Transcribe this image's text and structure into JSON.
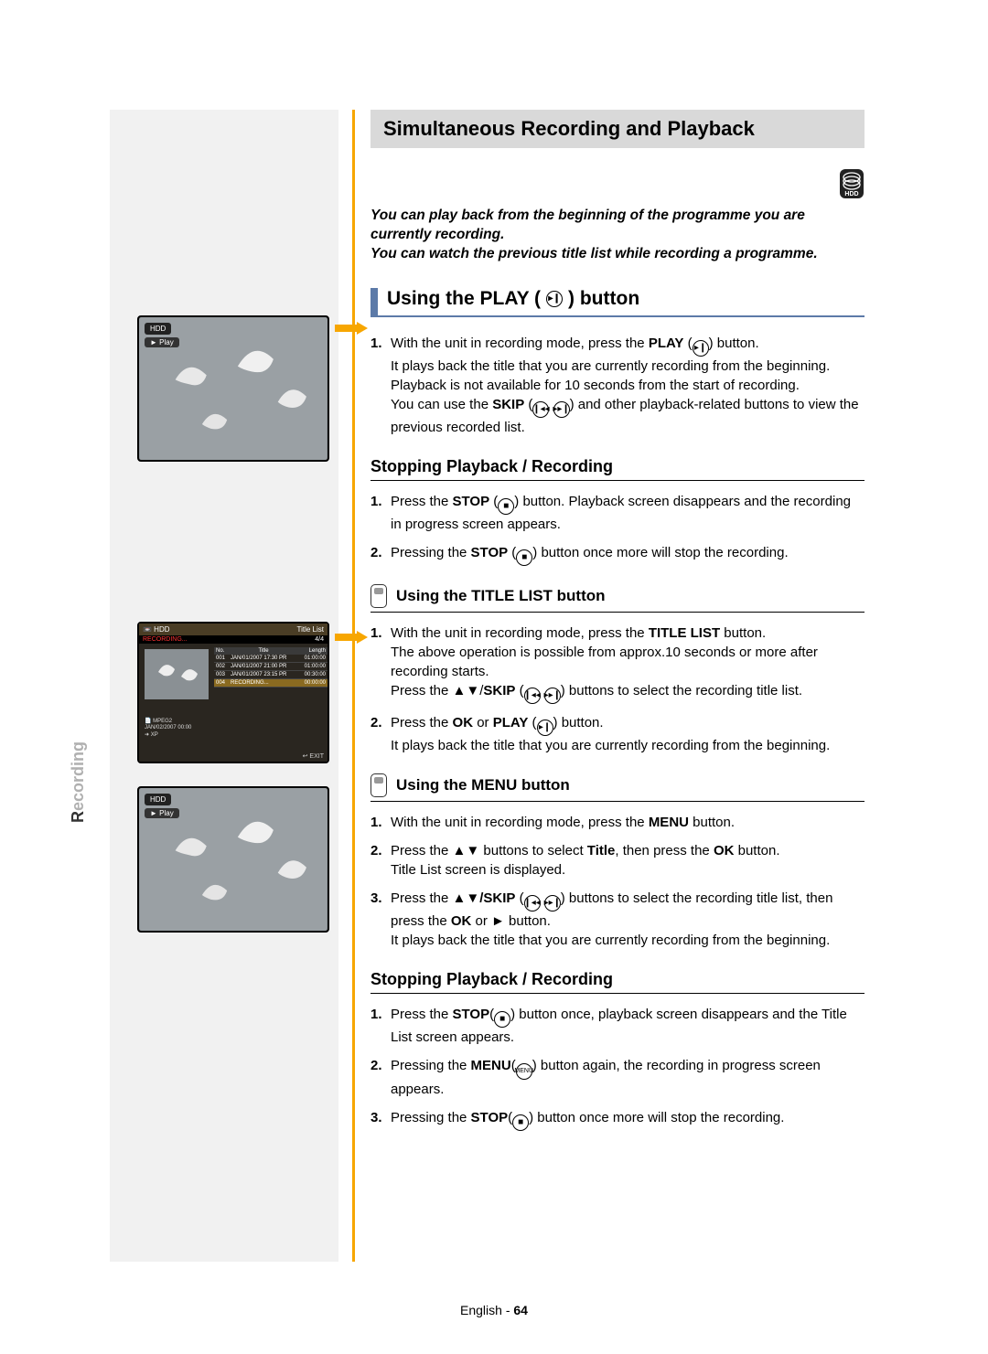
{
  "side_label_accent": "R",
  "side_label_rest": "ecording",
  "banner_title": "Simultaneous Recording and Playback",
  "intro_line1": "You can play back from the beginning of the programme you are currently recording.",
  "intro_line2": "You can watch the previous title list while recording a programme.",
  "heading_play": "Using the PLAY (",
  "heading_play_after": ") button",
  "heading_stop1": "Stopping Playback / Recording",
  "heading_titlelist": "Using the TITLE LIST button",
  "heading_menu": "Using the MENU button",
  "heading_stop2": "Stopping Playback / Recording",
  "play_steps": [
    "With the unit in recording mode, press the <b>PLAY</b> (<span class='circ'>▸❙</span>) button.<br>It plays back the title that you are currently recording from the beginning.<br>Playback is not available for 10 seconds from the start of recording.<br>You can use the <b>SKIP</b> (<span class='circ'>❙◂◂</span> <span class='circ'>▸▸❙</span>) and other playback-related buttons to view the previous recorded list."
  ],
  "stop1_steps": [
    "Press the <b>STOP</b> (<span class='circ'>■</span>) button. Playback screen disappears and the recording in progress screen appears.",
    "Pressing the <b>STOP</b> (<span class='circ'>■</span>) button once more will stop the recording."
  ],
  "titlelist_steps": [
    "With the unit in recording mode, press the <b>TITLE LIST</b> button.<br>The above operation is possible from approx.10 seconds or more after recording starts.<br>Press the ▲▼/<b>SKIP</b> (<span class='circ'>❙◂◂</span> <span class='circ'>▸▸❙</span>) buttons to select the recording title list.",
    "Press the <b>OK</b> or <b>PLAY</b> (<span class='circ'>▸❙</span>) button.<br>It plays back the title that you are currently recording from the beginning."
  ],
  "menu_steps": [
    "With the unit in recording mode, press the <b>MENU</b> button.",
    "Press the ▲▼ buttons to select <b>Title</b>, then press the  <b>OK</b> button.<br>Title List screen is displayed.",
    "Press the ▲▼<b>/SKIP</b> (<span class='circ'>❙◂◂</span> <span class='circ'>▸▸❙</span>) buttons to select the recording title list, then press the <b>OK</b> or ► button.<br>It plays back the title that you are currently recording from the beginning."
  ],
  "stop2_steps": [
    "Press the <b>STOP</b>(<span class='circ'>■</span>) button once, playback screen disappears and the Title List screen appears.",
    "Pressing the <b>MENU</b>(<span class='circ' style='font-size:7px'>MENU</span>) button again, the recording in progress screen appears.",
    "Pressing the <b>STOP</b>(<span class='circ'>■</span>) button once more will stop the recording."
  ],
  "footer_lang": "English",
  "footer_page": "64",
  "hdd_label": "HDD",
  "play_label": "► Play",
  "menu_superscript": "MENU",
  "title_list": {
    "header_left": "📼 HDD",
    "header_right": "Title List",
    "recording_tag": "RECORDING...",
    "page_indicator": "4/4",
    "columns": [
      "No.",
      "Title",
      "Length"
    ],
    "rows": [
      {
        "no": "001",
        "title": "JAN/01/2007 17:30 PR",
        "len": "01:00:00",
        "hl": false
      },
      {
        "no": "002",
        "title": "JAN/01/2007 21:00 PR",
        "len": "01:00:00",
        "hl": false
      },
      {
        "no": "003",
        "title": "JAN/01/2007 23:15 PR",
        "len": "00:30:00",
        "hl": false
      },
      {
        "no": "004",
        "title": "RECORDING...",
        "len": "00:00:00",
        "hl": true
      }
    ],
    "meta1": "📄 MPEG2",
    "meta2": "JAN/02/2007 00:00",
    "meta3": "➜ XP",
    "exit": "↩ EXIT"
  },
  "colors": {
    "orange": "#f7a600",
    "blue": "#5c7aa8",
    "banner_bg": "#d9d9d9",
    "left_block": "#f1f1f1"
  }
}
